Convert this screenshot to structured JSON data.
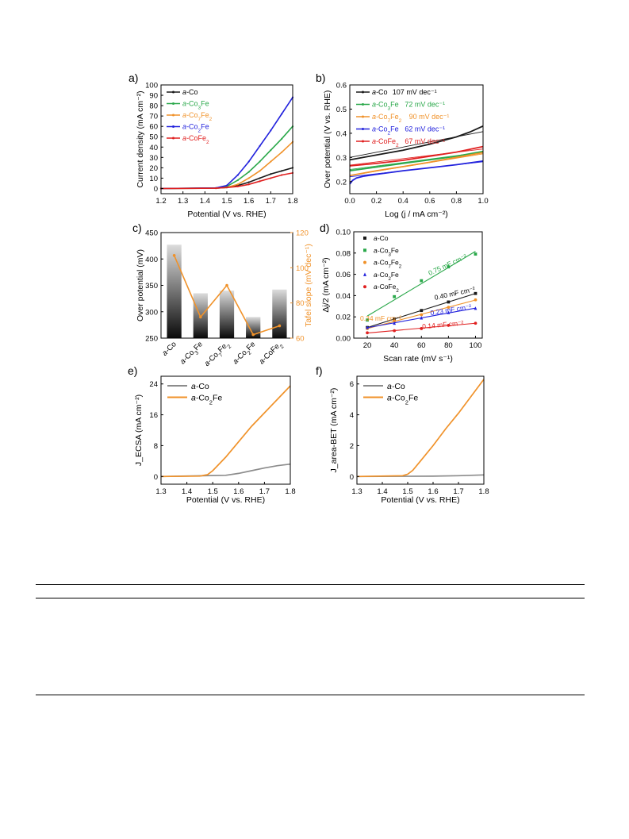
{
  "chart_data": [
    {
      "panel": "a)",
      "type": "line",
      "xlabel": "Potential (V vs. RHE)",
      "ylabel": "Current density (mA cm⁻²)",
      "xlim": [
        1.2,
        1.8
      ],
      "ylim": [
        -5,
        100
      ],
      "xticks": [
        "1.2",
        "1.3",
        "1.4",
        "1.5",
        "1.6",
        "1.7",
        "1.8"
      ],
      "yticks": [
        "0",
        "10",
        "20",
        "30",
        "40",
        "50",
        "60",
        "70",
        "80",
        "90",
        "100"
      ],
      "legend": "top-left",
      "series": [
        {
          "name": "a-Co",
          "color": "#1a1a1a",
          "x": [
            1.2,
            1.45,
            1.5,
            1.55,
            1.6,
            1.65,
            1.7,
            1.75,
            1.8
          ],
          "y": [
            0,
            0.3,
            1,
            3,
            6,
            10,
            14,
            17,
            20
          ]
        },
        {
          "name": "a-Co3Fe",
          "color": "#2aa84a",
          "x": [
            1.2,
            1.45,
            1.5,
            1.55,
            1.6,
            1.65,
            1.7,
            1.75,
            1.8
          ],
          "y": [
            0,
            0.5,
            2,
            8,
            16,
            26,
            37,
            48,
            60
          ]
        },
        {
          "name": "a-Co7Fe2",
          "color": "#f0922a",
          "x": [
            1.2,
            1.45,
            1.5,
            1.55,
            1.6,
            1.65,
            1.7,
            1.75,
            1.8
          ],
          "y": [
            0,
            0.3,
            1,
            4,
            10,
            17,
            26,
            35,
            45
          ]
        },
        {
          "name": "a-Co2Fe",
          "color": "#2222dd",
          "x": [
            1.2,
            1.45,
            1.5,
            1.55,
            1.6,
            1.65,
            1.7,
            1.75,
            1.8
          ],
          "y": [
            0,
            0.5,
            3,
            13,
            26,
            41,
            56,
            72,
            88
          ]
        },
        {
          "name": "a-CoFe2",
          "color": "#e02020",
          "x": [
            1.2,
            1.45,
            1.5,
            1.55,
            1.6,
            1.65,
            1.7,
            1.75,
            1.8
          ],
          "y": [
            0,
            0.3,
            1,
            2,
            4,
            7,
            10,
            13,
            15
          ]
        }
      ]
    },
    {
      "panel": "b)",
      "type": "line",
      "xlabel": "Log (j / mA cm⁻²)",
      "ylabel": "Over potential (V vs. RHE)",
      "xlim": [
        0,
        1.0
      ],
      "ylim": [
        0.15,
        0.6
      ],
      "xticks": [
        "0.0",
        "0.2",
        "0.4",
        "0.6",
        "0.8",
        "1.0"
      ],
      "yticks": [
        "0.2",
        "0.3",
        "0.4",
        "0.5",
        "0.6"
      ],
      "legend": "top-left",
      "series": [
        {
          "name": "a-Co",
          "label": "107 mV dec⁻¹",
          "color": "#1a1a1a",
          "x": [
            0,
            0.2,
            0.4,
            0.6,
            0.8,
            0.9,
            1.0
          ],
          "y": [
            0.29,
            0.31,
            0.33,
            0.355,
            0.385,
            0.405,
            0.43
          ],
          "fit": [
            [
              0,
              0.3
            ],
            [
              1,
              0.407
            ]
          ]
        },
        {
          "name": "a-Co3Fe",
          "label": "72 mV dec⁻¹",
          "color": "#2aa84a",
          "x": [
            0,
            0.2,
            0.4,
            0.6,
            0.8,
            1.0
          ],
          "y": [
            0.245,
            0.26,
            0.275,
            0.29,
            0.305,
            0.325
          ],
          "fit": [
            [
              0,
              0.25
            ],
            [
              1,
              0.322
            ]
          ]
        },
        {
          "name": "a-Co7Fe2",
          "label": "90 mV dec⁻¹",
          "color": "#f0922a",
          "x": [
            0,
            0.2,
            0.4,
            0.6,
            0.8,
            1.0
          ],
          "y": [
            0.225,
            0.245,
            0.262,
            0.28,
            0.3,
            0.32
          ],
          "fit": [
            [
              0,
              0.225
            ],
            [
              1,
              0.315
            ]
          ]
        },
        {
          "name": "a-Co2Fe",
          "label": "62 mV dec⁻¹",
          "color": "#2222dd",
          "x": [
            0,
            0.02,
            0.05,
            0.1,
            0.2,
            0.4,
            0.6,
            0.8,
            1.0
          ],
          "y": [
            0.19,
            0.205,
            0.215,
            0.222,
            0.23,
            0.245,
            0.257,
            0.27,
            0.285
          ],
          "fit": [
            [
              0,
              0.22
            ],
            [
              1,
              0.282
            ]
          ]
        },
        {
          "name": "a-CoFe2",
          "label": "67 mV dec⁻¹",
          "color": "#e02020",
          "x": [
            0,
            0.2,
            0.4,
            0.6,
            0.8,
            1.0
          ],
          "y": [
            0.265,
            0.275,
            0.288,
            0.305,
            0.322,
            0.345
          ],
          "fit": [
            [
              0,
              0.268
            ],
            [
              1,
              0.335
            ]
          ]
        }
      ]
    },
    {
      "panel": "c)",
      "type": "bar",
      "categories": [
        "a-Co",
        "a-Co3Fe",
        "a-Co7Fe2",
        "a-Co2Fe",
        "a-CoFe2"
      ],
      "values": [
        427,
        335,
        340,
        290,
        342
      ],
      "ylabel": "Over potential (mV)",
      "ylim": [
        250,
        450
      ],
      "yticks": [
        "250",
        "300",
        "350",
        "400",
        "450"
      ],
      "y2label": "Tafel slope (mV dec⁻¹)",
      "y2lim": [
        60,
        120
      ],
      "y2ticks": [
        "60",
        "80",
        "100",
        "120"
      ],
      "line_values": [
        107,
        72,
        90,
        62,
        67
      ],
      "line_color": "#f0922a"
    },
    {
      "panel": "d)",
      "type": "scatter",
      "xlabel": "Scan rate (mV s⁻¹)",
      "ylabel": "Δj/2 (mA cm⁻²)",
      "xlim": [
        10,
        105
      ],
      "ylim": [
        0,
        0.1
      ],
      "xticks": [
        "20",
        "40",
        "60",
        "80",
        "100"
      ],
      "yticks": [
        "0.00",
        "0.02",
        "0.04",
        "0.06",
        "0.08",
        "0.10"
      ],
      "legend": "top-left",
      "series": [
        {
          "name": "a-Co",
          "marker": "square",
          "color": "#1a1a1a",
          "label": "0.40 mF cm⁻²",
          "x": [
            20,
            40,
            60,
            80,
            100
          ],
          "y": [
            0.01,
            0.018,
            0.026,
            0.034,
            0.042
          ]
        },
        {
          "name": "a-Co3Fe",
          "marker": "square",
          "color": "#2aa84a",
          "label": "0.75 mF cm⁻²",
          "x": [
            20,
            40,
            60,
            80,
            100
          ],
          "y": [
            0.017,
            0.039,
            0.054,
            0.067,
            0.079
          ]
        },
        {
          "name": "a-Co7Fe2",
          "marker": "circle",
          "color": "#f0922a",
          "label": "0.34 mF cm⁻²",
          "x": [
            20,
            40,
            60,
            80,
            100
          ],
          "y": [
            0.009,
            0.016,
            0.022,
            0.029,
            0.036
          ]
        },
        {
          "name": "a-Co2Fe",
          "marker": "triangle",
          "color": "#2222dd",
          "label": "0.23 mF cm⁻²",
          "x": [
            20,
            40,
            60,
            80,
            100
          ],
          "y": [
            0.01,
            0.014,
            0.019,
            0.024,
            0.028
          ]
        },
        {
          "name": "a-CoFe2",
          "marker": "circle",
          "color": "#e02020",
          "label": "0.14 mF cm⁻²",
          "x": [
            20,
            40,
            60,
            80,
            100
          ],
          "y": [
            0.005,
            0.007,
            0.009,
            0.012,
            0.014
          ]
        }
      ]
    },
    {
      "panel": "e)",
      "type": "line",
      "xlabel": "Potential (V vs. RHE)",
      "ylabel": "J_ECSA (mA cm⁻²)",
      "xlim": [
        1.3,
        1.8
      ],
      "ylim": [
        -2,
        26
      ],
      "xticks": [
        "1.3",
        "1.4",
        "1.5",
        "1.6",
        "1.7",
        "1.8"
      ],
      "yticks": [
        "0",
        "8",
        "16",
        "24"
      ],
      "legend": "top-left",
      "series": [
        {
          "name": "a-Co",
          "color": "#8c8c8c",
          "x": [
            1.3,
            1.55,
            1.6,
            1.65,
            1.7,
            1.75,
            1.8
          ],
          "y": [
            0,
            0.3,
            0.8,
            1.5,
            2.2,
            2.8,
            3.2
          ]
        },
        {
          "name": "a-Co2Fe",
          "color": "#f0922a",
          "x": [
            1.3,
            1.45,
            1.48,
            1.5,
            1.55,
            1.6,
            1.65,
            1.7,
            1.75,
            1.8
          ],
          "y": [
            0,
            0.1,
            0.5,
            1.5,
            5,
            9,
            13,
            16.5,
            20,
            23.5
          ]
        }
      ]
    },
    {
      "panel": "f)",
      "type": "line",
      "xlabel": "Potential (V vs. RHE)",
      "ylabel": "J_area-BET (mA cm⁻²)",
      "xlim": [
        1.3,
        1.8
      ],
      "ylim": [
        -0.5,
        6.5
      ],
      "xticks": [
        "1.3",
        "1.4",
        "1.5",
        "1.6",
        "1.7",
        "1.8"
      ],
      "yticks": [
        "0",
        "2",
        "4",
        "6"
      ],
      "legend": "top-left",
      "series": [
        {
          "name": "a-Co",
          "color": "#8c8c8c",
          "x": [
            1.3,
            1.6,
            1.7,
            1.8
          ],
          "y": [
            0,
            0.02,
            0.05,
            0.1
          ]
        },
        {
          "name": "a-Co2Fe",
          "color": "#f0922a",
          "x": [
            1.3,
            1.48,
            1.5,
            1.52,
            1.55,
            1.6,
            1.65,
            1.7,
            1.75,
            1.8
          ],
          "y": [
            0,
            0.05,
            0.15,
            0.4,
            1.0,
            2.0,
            3.1,
            4.1,
            5.2,
            6.3
          ]
        }
      ]
    }
  ]
}
